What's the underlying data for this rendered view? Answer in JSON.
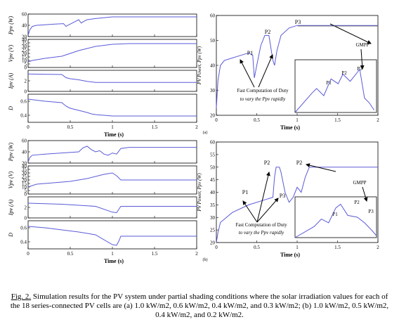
{
  "chart_data": [
    {
      "id": "a-left",
      "type": "line",
      "xlabel": "Time (s)",
      "xlim": [
        0,
        2
      ],
      "xticks": [
        0,
        0.5,
        1,
        1.5,
        2
      ],
      "subplots": [
        {
          "ylabel": "Ppv (W)",
          "ylim": [
            20,
            60
          ],
          "yticks": [
            20,
            40,
            60
          ],
          "x": [
            0,
            0.02,
            0.05,
            0.1,
            0.2,
            0.3,
            0.42,
            0.45,
            0.47,
            0.55,
            0.6,
            0.63,
            0.66,
            0.7,
            0.8,
            1.0,
            1.2,
            2.0
          ],
          "y": [
            22,
            32,
            38,
            40,
            41,
            42,
            43,
            38,
            40,
            46,
            50,
            44,
            47,
            50,
            52,
            55,
            55,
            55
          ]
        },
        {
          "ylabel": "Vpv (V)",
          "ylim": [
            0,
            40
          ],
          "yticks": [
            0,
            5,
            10,
            15,
            20,
            25,
            30,
            35,
            40
          ],
          "x": [
            0,
            0.05,
            0.2,
            0.4,
            0.5,
            0.6,
            0.7,
            0.8,
            1.0,
            1.2,
            1.5,
            2.0
          ],
          "y": [
            8,
            10,
            13,
            16,
            20,
            24,
            27,
            30,
            33,
            34,
            34,
            34
          ]
        },
        {
          "ylabel": "Ipv (A)",
          "ylim": [
            0,
            4
          ],
          "yticks": [
            0,
            2
          ],
          "x": [
            0,
            0.4,
            0.45,
            0.5,
            0.6,
            0.7,
            0.8,
            1.0,
            2.0
          ],
          "y": [
            3.3,
            3.2,
            2.6,
            2.4,
            2.2,
            1.9,
            1.7,
            1.7,
            1.7
          ]
        },
        {
          "ylabel": "D",
          "ylim": [
            0.3,
            0.7
          ],
          "yticks": [
            0.4,
            0.6
          ],
          "x": [
            0,
            0.2,
            0.4,
            0.45,
            0.5,
            0.6,
            0.7,
            0.75,
            0.8,
            1.0,
            2.0
          ],
          "y": [
            0.63,
            0.6,
            0.58,
            0.53,
            0.5,
            0.47,
            0.44,
            0.42,
            0.41,
            0.39,
            0.39
          ]
        }
      ]
    },
    {
      "id": "a-right",
      "type": "line",
      "xlabel": "Time (s)",
      "ylabel": "PV Power, Ppv (W)",
      "xlim": [
        0,
        2
      ],
      "ylim": [
        20,
        60
      ],
      "xticks": [
        0,
        0.5,
        1,
        1.5,
        2
      ],
      "yticks": [
        20,
        30,
        40,
        50,
        60
      ],
      "x": [
        0,
        0.02,
        0.05,
        0.1,
        0.2,
        0.3,
        0.4,
        0.45,
        0.47,
        0.5,
        0.55,
        0.6,
        0.65,
        0.7,
        0.72,
        0.75,
        0.8,
        0.9,
        1.0,
        1.2,
        2.0
      ],
      "y": [
        23,
        34,
        40,
        42,
        43,
        44,
        45,
        44,
        35,
        40,
        48,
        52,
        52,
        42,
        40,
        46,
        52,
        55,
        56,
        56,
        56
      ],
      "annotations": [
        "P1",
        "P2",
        "P3",
        "GMPP",
        "Fast Computation of Duty",
        "to vary the Ppv rapidly"
      ],
      "inset": {
        "x": [
          0,
          0.35,
          0.45,
          0.6,
          0.75,
          0.9,
          1.0,
          1.15,
          1.35,
          1.45,
          1.55,
          1.65
        ],
        "y": [
          0,
          0.4,
          0.5,
          0.35,
          0.7,
          0.6,
          0.8,
          0.65,
          0.9,
          0.3,
          0.2,
          0.05
        ],
        "labels": [
          "P1",
          "P2",
          "P3"
        ]
      },
      "panel_label": "(a)"
    },
    {
      "id": "b-left",
      "type": "line",
      "xlabel": "Time (s)",
      "xlim": [
        0,
        2
      ],
      "xticks": [
        0,
        0.5,
        1,
        1.5,
        2
      ],
      "subplots": [
        {
          "ylabel": "Ppv (W)",
          "ylim": [
            20,
            60
          ],
          "yticks": [
            20,
            40,
            60
          ],
          "x": [
            0,
            0.02,
            0.05,
            0.2,
            0.4,
            0.6,
            0.65,
            0.7,
            0.75,
            0.8,
            0.85,
            0.9,
            0.95,
            1.0,
            1.05,
            1.1,
            1.2,
            2.0
          ],
          "y": [
            22,
            30,
            34,
            36,
            38,
            40,
            47,
            50,
            44,
            40,
            42,
            36,
            34,
            38,
            36,
            46,
            48,
            48
          ]
        },
        {
          "ylabel": "Vpv (V)",
          "ylim": [
            0,
            40
          ],
          "yticks": [
            0,
            5,
            10,
            15,
            20,
            25,
            30,
            35,
            40
          ],
          "x": [
            0,
            0.1,
            0.3,
            0.5,
            0.7,
            0.9,
            1.0,
            1.05,
            1.1,
            2.0
          ],
          "y": [
            10,
            14,
            16,
            18,
            22,
            28,
            30,
            26,
            20,
            20
          ]
        },
        {
          "ylabel": "Ipv (A)",
          "ylim": [
            0,
            4
          ],
          "yticks": [
            0,
            2
          ],
          "x": [
            0,
            0.4,
            0.6,
            0.8,
            1.0,
            1.05,
            1.1,
            2.0
          ],
          "y": [
            2.8,
            2.6,
            2.4,
            2.2,
            1.1,
            1.0,
            2.2,
            2.2
          ]
        },
        {
          "ylabel": "D",
          "ylim": [
            0.3,
            0.7
          ],
          "yticks": [
            0.4,
            0.6
          ],
          "x": [
            0,
            0.2,
            0.4,
            0.6,
            0.8,
            1.0,
            1.05,
            1.08,
            1.1,
            2.0
          ],
          "y": [
            0.62,
            0.6,
            0.57,
            0.54,
            0.5,
            0.36,
            0.35,
            0.42,
            0.48,
            0.48
          ]
        }
      ]
    },
    {
      "id": "b-right",
      "type": "line",
      "xlabel": "Time (s)",
      "ylabel": "PV Power, Ppv (W)",
      "xlim": [
        0,
        2
      ],
      "ylim": [
        20,
        60
      ],
      "xticks": [
        0,
        0.5,
        1,
        1.5,
        2
      ],
      "yticks": [
        20,
        25,
        30,
        35,
        40,
        45,
        50,
        55,
        60
      ],
      "x": [
        0,
        0.02,
        0.05,
        0.2,
        0.4,
        0.6,
        0.7,
        0.72,
        0.74,
        0.78,
        0.8,
        0.85,
        0.9,
        0.95,
        1.0,
        1.05,
        1.1,
        1.15,
        1.2,
        1.3,
        2.0
      ],
      "y": [
        20,
        24,
        28,
        32,
        35,
        37,
        38,
        46,
        50,
        50,
        48,
        40,
        36,
        38,
        42,
        40,
        46,
        50,
        50,
        50,
        50
      ],
      "annotations": [
        "P1",
        "P2",
        "P3",
        "P2",
        "GMPP",
        "Fast Computation of Duty",
        "to vary the Ppv rapidly"
      ],
      "inset": {
        "x": [
          0,
          0.4,
          0.55,
          0.7,
          0.85,
          0.95,
          1.1,
          1.3,
          1.45,
          1.6,
          1.7
        ],
        "y": [
          0,
          0.3,
          0.5,
          0.4,
          0.8,
          0.9,
          0.6,
          0.55,
          0.4,
          0.2,
          0.05
        ],
        "labels": [
          "P1",
          "P2",
          "P3"
        ]
      },
      "panel_label": "(b)"
    }
  ],
  "caption": {
    "figure": "Fig. 2.",
    "text": " Simulation results for the PV system under partial shading conditions where the solar irradiation values for each of the 18 series-connected PV cells are (a) 1.0 kW/m2, 0.6 kW/m2, 0.4 kW/m2, and 0.3 kW/m2; (b) 1.0 kW/m2, 0.5 kW/m2, 0.4 kW/m2, and 0.2 kW/m2."
  }
}
